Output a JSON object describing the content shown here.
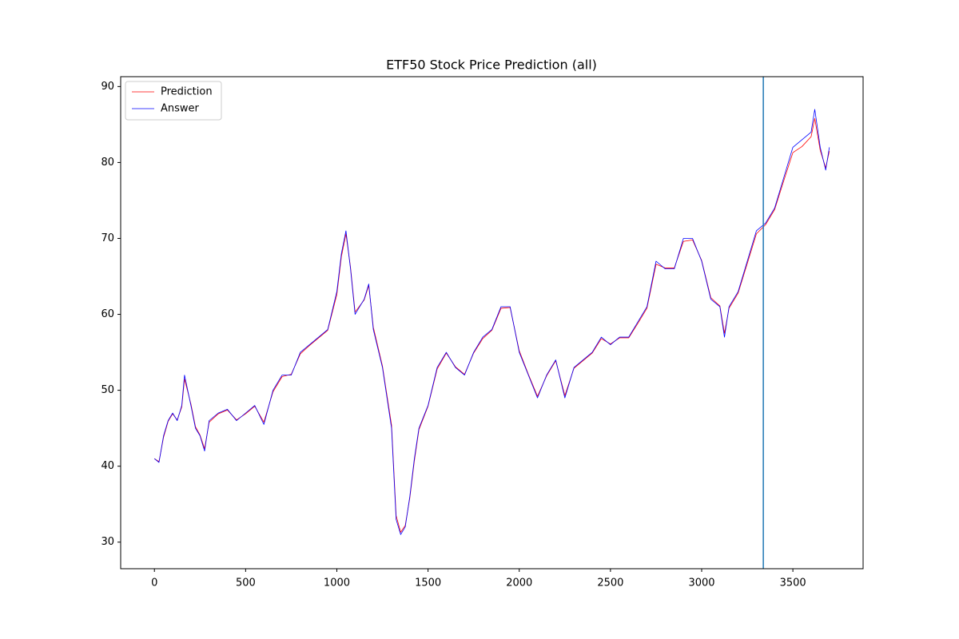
{
  "chart_data": {
    "type": "line",
    "title": "ETF50 Stock Price Prediction (all)",
    "x": [
      0,
      25,
      50,
      75,
      100,
      125,
      150,
      165,
      200,
      225,
      250,
      275,
      300,
      350,
      400,
      450,
      500,
      550,
      600,
      650,
      700,
      750,
      800,
      850,
      900,
      950,
      1000,
      1025,
      1050,
      1075,
      1100,
      1150,
      1175,
      1200,
      1250,
      1300,
      1325,
      1350,
      1375,
      1400,
      1425,
      1450,
      1500,
      1550,
      1600,
      1650,
      1700,
      1750,
      1800,
      1850,
      1900,
      1950,
      2000,
      2050,
      2100,
      2150,
      2200,
      2250,
      2300,
      2350,
      2400,
      2450,
      2500,
      2550,
      2600,
      2650,
      2700,
      2750,
      2800,
      2850,
      2900,
      2950,
      3000,
      3050,
      3100,
      3125,
      3150,
      3200,
      3250,
      3300,
      3350,
      3400,
      3450,
      3500,
      3550,
      3600,
      3620,
      3650,
      3680,
      3700
    ],
    "series": [
      {
        "name": "Prediction",
        "color": "#ff0000",
        "values": [
          41,
          40.6,
          43.8,
          45.9,
          46.9,
          46.1,
          47.8,
          51.5,
          48.2,
          45.2,
          44.1,
          42.3,
          45.8,
          46.9,
          47.4,
          46.1,
          46.9,
          47.9,
          45.8,
          49.8,
          51.8,
          52.1,
          54.8,
          55.9,
          56.9,
          57.9,
          62.6,
          67.6,
          70.6,
          66.2,
          60.3,
          61.9,
          63.8,
          58.3,
          53.2,
          45.4,
          33.5,
          31.3,
          32.2,
          35.8,
          40.7,
          44.8,
          47.9,
          52.8,
          54.9,
          53.1,
          52.1,
          54.9,
          56.8,
          57.9,
          60.8,
          60.9,
          55.2,
          52.1,
          49.2,
          51.9,
          53.9,
          49.3,
          52.9,
          53.9,
          54.9,
          56.8,
          56.1,
          56.9,
          56.9,
          58.8,
          60.8,
          66.6,
          66.1,
          66.1,
          69.6,
          69.8,
          67.1,
          62.2,
          61.1,
          57.5,
          60.8,
          62.8,
          66.7,
          70.6,
          71.8,
          73.8,
          77.6,
          81.3,
          82.1,
          83.4,
          85.8,
          81.6,
          79.3,
          81.5
        ]
      },
      {
        "name": "Answer",
        "color": "#0000ff",
        "values": [
          41,
          40.5,
          44,
          46,
          47,
          46,
          48,
          52,
          48,
          45,
          44,
          42,
          46,
          47,
          47.5,
          46,
          47,
          48,
          45.5,
          50,
          52,
          52,
          55,
          56,
          57,
          58,
          63,
          68,
          71,
          66,
          60,
          62,
          64,
          58,
          53,
          45,
          33,
          31,
          32,
          36,
          41,
          45,
          48,
          53,
          55,
          53,
          52,
          55,
          57,
          58,
          61,
          61,
          55,
          52,
          49,
          52,
          54,
          49,
          53,
          54,
          55,
          57,
          56,
          57,
          57,
          59,
          61,
          67,
          66,
          66,
          70,
          70,
          67,
          62,
          61,
          57,
          61,
          63,
          67,
          71,
          72,
          74,
          78,
          82,
          83,
          84,
          87,
          82,
          79,
          82
        ]
      }
    ],
    "vlines": [
      3338
    ],
    "vline_color": "#1f77b4",
    "xlim": [
      -185,
      3885
    ],
    "xticks": [
      0,
      500,
      1000,
      1500,
      2000,
      2500,
      3000,
      3500
    ],
    "ylim": [
      26.5,
      91.3
    ],
    "yticks": [
      30,
      40,
      50,
      60,
      70,
      80,
      90
    ],
    "legend": "upper-left",
    "grid": false
  }
}
